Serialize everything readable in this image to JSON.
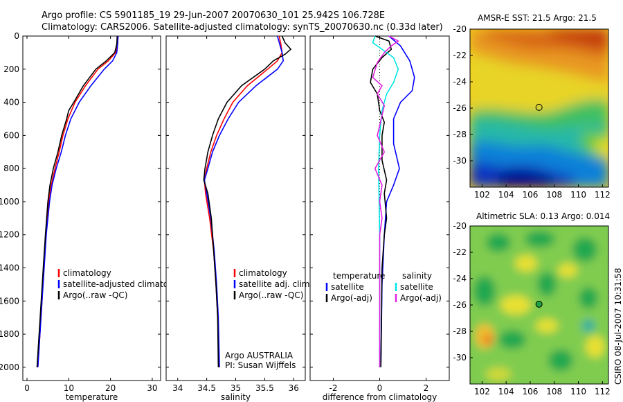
{
  "title_line1": "Argo profile: CS 5901185_19 29-Jun-2007 20070630_101 25.942S 106.728E",
  "title_line2": "Climatology: CARS2006. Satellite-adjusted climatology: synTS_20070630.nc (0.33d later)",
  "stamp": "CSIRO 08-Jul-2007 10:31:58",
  "colors": {
    "climatology": "#ff0000",
    "satellite": "#0000ff",
    "argo": "#000000",
    "cyan": "#00e5e5",
    "magenta": "#e020e0"
  },
  "chart_data": [
    {
      "type": "line",
      "xlabel": "temperature",
      "xlim": [
        -1,
        32
      ],
      "ylim": [
        2080,
        0
      ],
      "xticks": [
        0,
        10,
        20,
        30
      ],
      "yticks": [
        0,
        200,
        400,
        600,
        800,
        1000,
        1200,
        1400,
        1600,
        1800,
        2000
      ],
      "legend": [
        {
          "label": "climatology",
          "color": "#ff0000"
        },
        {
          "label": "satellite-adjusted climatology",
          "color": "#0000ff"
        },
        {
          "label": "Argo(..raw -QC)",
          "color": "#000000"
        }
      ],
      "series": [
        {
          "name": "climatology",
          "color": "#ff0000",
          "points": [
            [
              21.8,
              0
            ],
            [
              21.7,
              50
            ],
            [
              21.2,
              100
            ],
            [
              19.5,
              150
            ],
            [
              17.0,
              200
            ],
            [
              14.0,
              300
            ],
            [
              11.5,
              400
            ],
            [
              9.8,
              500
            ],
            [
              8.6,
              600
            ],
            [
              7.7,
              700
            ],
            [
              6.7,
              800
            ],
            [
              5.8,
              900
            ],
            [
              5.2,
              1000
            ],
            [
              4.5,
              1200
            ],
            [
              4.0,
              1400
            ],
            [
              3.6,
              1600
            ],
            [
              3.1,
              1800
            ],
            [
              2.6,
              2000
            ]
          ]
        },
        {
          "name": "satellite",
          "color": "#0000ff",
          "points": [
            [
              21.8,
              0
            ],
            [
              21.7,
              50
            ],
            [
              21.5,
              100
            ],
            [
              20.5,
              150
            ],
            [
              18.5,
              200
            ],
            [
              15.3,
              300
            ],
            [
              12.5,
              400
            ],
            [
              10.5,
              500
            ],
            [
              9.2,
              600
            ],
            [
              8.2,
              700
            ],
            [
              7.0,
              800
            ],
            [
              6.0,
              900
            ],
            [
              5.4,
              1000
            ],
            [
              4.6,
              1200
            ],
            [
              4.1,
              1400
            ],
            [
              3.6,
              1600
            ],
            [
              3.1,
              1800
            ],
            [
              2.6,
              2000
            ]
          ]
        },
        {
          "name": "Argo",
          "color": "#000000",
          "points": [
            [
              21.6,
              0
            ],
            [
              21.5,
              50
            ],
            [
              21.0,
              100
            ],
            [
              19.0,
              150
            ],
            [
              16.5,
              200
            ],
            [
              13.5,
              300
            ],
            [
              11.2,
              400
            ],
            [
              10.0,
              450
            ],
            [
              9.5,
              500
            ],
            [
              8.3,
              600
            ],
            [
              7.4,
              700
            ],
            [
              6.3,
              800
            ],
            [
              5.5,
              900
            ],
            [
              5.0,
              1000
            ],
            [
              4.4,
              1200
            ],
            [
              3.9,
              1400
            ],
            [
              3.4,
              1600
            ],
            [
              2.9,
              1800
            ],
            [
              2.4,
              2000
            ]
          ]
        }
      ]
    },
    {
      "type": "line",
      "xlabel": "salinity",
      "xlim": [
        33.8,
        36.2
      ],
      "ylim": [
        2080,
        0
      ],
      "xticks": [
        34,
        34.5,
        35,
        35.5,
        36
      ],
      "xticklabels": [
        "34",
        "34.5",
        "35",
        "35.5",
        "36"
      ],
      "legend": [
        {
          "label": "climatology",
          "color": "#ff0000"
        },
        {
          "label": "satellite adj. clim.",
          "color": "#0000ff"
        },
        {
          "label": "Argo(..raw -QC)",
          "color": "#000000"
        }
      ],
      "annotation": [
        "Argo AUSTRALIA",
        "PI: Susan Wijffels"
      ],
      "series": [
        {
          "name": "climatology",
          "color": "#ff0000",
          "points": [
            [
              35.75,
              0
            ],
            [
              35.78,
              50
            ],
            [
              35.8,
              100
            ],
            [
              35.72,
              150
            ],
            [
              35.55,
              200
            ],
            [
              35.2,
              300
            ],
            [
              34.95,
              400
            ],
            [
              34.8,
              500
            ],
            [
              34.67,
              600
            ],
            [
              34.57,
              700
            ],
            [
              34.5,
              800
            ],
            [
              34.46,
              870
            ],
            [
              34.48,
              950
            ],
            [
              34.55,
              1100
            ],
            [
              34.62,
              1300
            ],
            [
              34.66,
              1500
            ],
            [
              34.69,
              1700
            ],
            [
              34.71,
              2000
            ]
          ]
        },
        {
          "name": "satellite",
          "color": "#0000ff",
          "points": [
            [
              35.72,
              0
            ],
            [
              35.76,
              50
            ],
            [
              35.8,
              100
            ],
            [
              35.82,
              150
            ],
            [
              35.72,
              200
            ],
            [
              35.35,
              300
            ],
            [
              35.05,
              400
            ],
            [
              34.87,
              500
            ],
            [
              34.72,
              600
            ],
            [
              34.6,
              700
            ],
            [
              34.52,
              800
            ],
            [
              34.46,
              870
            ],
            [
              34.5,
              950
            ],
            [
              34.57,
              1100
            ],
            [
              34.63,
              1300
            ],
            [
              34.67,
              1500
            ],
            [
              34.7,
              1700
            ],
            [
              34.72,
              2000
            ]
          ]
        },
        {
          "name": "Argo",
          "color": "#000000",
          "points": [
            [
              35.8,
              0
            ],
            [
              35.85,
              40
            ],
            [
              35.95,
              80
            ],
            [
              35.85,
              110
            ],
            [
              35.65,
              150
            ],
            [
              35.5,
              200
            ],
            [
              35.1,
              300
            ],
            [
              34.85,
              400
            ],
            [
              34.7,
              500
            ],
            [
              34.6,
              600
            ],
            [
              34.52,
              700
            ],
            [
              34.47,
              800
            ],
            [
              34.45,
              870
            ],
            [
              34.52,
              950
            ],
            [
              34.58,
              1100
            ],
            [
              34.62,
              1300
            ],
            [
              34.66,
              1500
            ],
            [
              34.69,
              1700
            ],
            [
              34.7,
              2000
            ]
          ]
        }
      ]
    },
    {
      "type": "line",
      "xlabel": "difference from climatology",
      "xlim": [
        -3,
        3
      ],
      "ylim": [
        2080,
        0
      ],
      "xticks": [
        -2,
        0,
        2
      ],
      "legend": [
        {
          "label": "temperature",
          "color": null
        },
        {
          "label": "satellite",
          "color": "#0000ff"
        },
        {
          "label": "Argo(-adj)",
          "color": "#000000"
        },
        {
          "label": "salinity",
          "color": null
        },
        {
          "label": "satellite",
          "color": "#00e5e5"
        },
        {
          "label": "Argo(-adj)",
          "color": "#e020e0"
        }
      ],
      "series": [
        {
          "name": "temperature satellite",
          "color": "#0000ff",
          "points": [
            [
              0.4,
              0
            ],
            [
              0.9,
              60
            ],
            [
              1.3,
              150
            ],
            [
              1.5,
              250
            ],
            [
              1.4,
              330
            ],
            [
              0.9,
              400
            ],
            [
              0.6,
              500
            ],
            [
              0.6,
              650
            ],
            [
              0.85,
              800
            ],
            [
              0.6,
              900
            ],
            [
              0.3,
              1000
            ],
            [
              0.2,
              1200
            ],
            [
              0.1,
              1500
            ],
            [
              0.05,
              2000
            ]
          ]
        },
        {
          "name": "temperature Argo",
          "color": "#000000",
          "points": [
            [
              -0.2,
              0
            ],
            [
              0.4,
              30
            ],
            [
              0.5,
              80
            ],
            [
              0.1,
              130
            ],
            [
              -0.3,
              200
            ],
            [
              -0.4,
              280
            ],
            [
              -0.1,
              350
            ],
            [
              0.0,
              450
            ],
            [
              0.2,
              520
            ],
            [
              0.1,
              600
            ],
            [
              0.1,
              750
            ],
            [
              0.3,
              870
            ],
            [
              0.2,
              950
            ],
            [
              0.3,
              1100
            ],
            [
              0.2,
              1200
            ],
            [
              0.1,
              1400
            ],
            [
              0.05,
              2000
            ]
          ]
        },
        {
          "name": "salinity satellite",
          "color": "#00e5e5",
          "points": [
            [
              -0.2,
              0
            ],
            [
              -0.3,
              40
            ],
            [
              0.1,
              80
            ],
            [
              0.6,
              130
            ],
            [
              0.8,
              200
            ],
            [
              0.6,
              280
            ],
            [
              0.3,
              350
            ],
            [
              0.1,
              450
            ],
            [
              0.0,
              600
            ],
            [
              -0.05,
              800
            ],
            [
              0.0,
              1200
            ],
            [
              0.0,
              2000
            ]
          ]
        },
        {
          "name": "salinity Argo",
          "color": "#e020e0",
          "points": [
            [
              0.4,
              0
            ],
            [
              0.8,
              30
            ],
            [
              0.5,
              60
            ],
            [
              0.2,
              100
            ],
            [
              -0.1,
              160
            ],
            [
              -0.3,
              250
            ],
            [
              0.1,
              300
            ],
            [
              -0.1,
              350
            ],
            [
              0.2,
              420
            ],
            [
              -0.1,
              600
            ],
            [
              0.2,
              700
            ],
            [
              -0.2,
              800
            ],
            [
              0.1,
              900
            ],
            [
              0.0,
              1000
            ],
            [
              0.1,
              1100
            ],
            [
              0.0,
              1200
            ],
            [
              0.0,
              2000
            ]
          ]
        }
      ]
    },
    {
      "type": "heatmap",
      "title": "AMSR-E SST: 21.5 Argo: 21.5",
      "xlim": [
        101,
        112.5
      ],
      "ylim": [
        -32,
        -20
      ],
      "xticks": [
        102,
        104,
        106,
        108,
        110,
        112
      ],
      "yticks": [
        -20,
        -22,
        -24,
        -26,
        -28,
        -30
      ],
      "marker": {
        "x": 106.73,
        "y": -25.94
      }
    },
    {
      "type": "heatmap",
      "title": "Altimetric SLA: 0.13 Argo: 0.014",
      "xlim": [
        101,
        112.5
      ],
      "ylim": [
        -32,
        -20
      ],
      "xticks": [
        102,
        104,
        106,
        108,
        110,
        112
      ],
      "yticks": [
        -20,
        -22,
        -24,
        -26,
        -28,
        -30
      ],
      "marker": {
        "x": 106.73,
        "y": -25.94
      }
    }
  ]
}
